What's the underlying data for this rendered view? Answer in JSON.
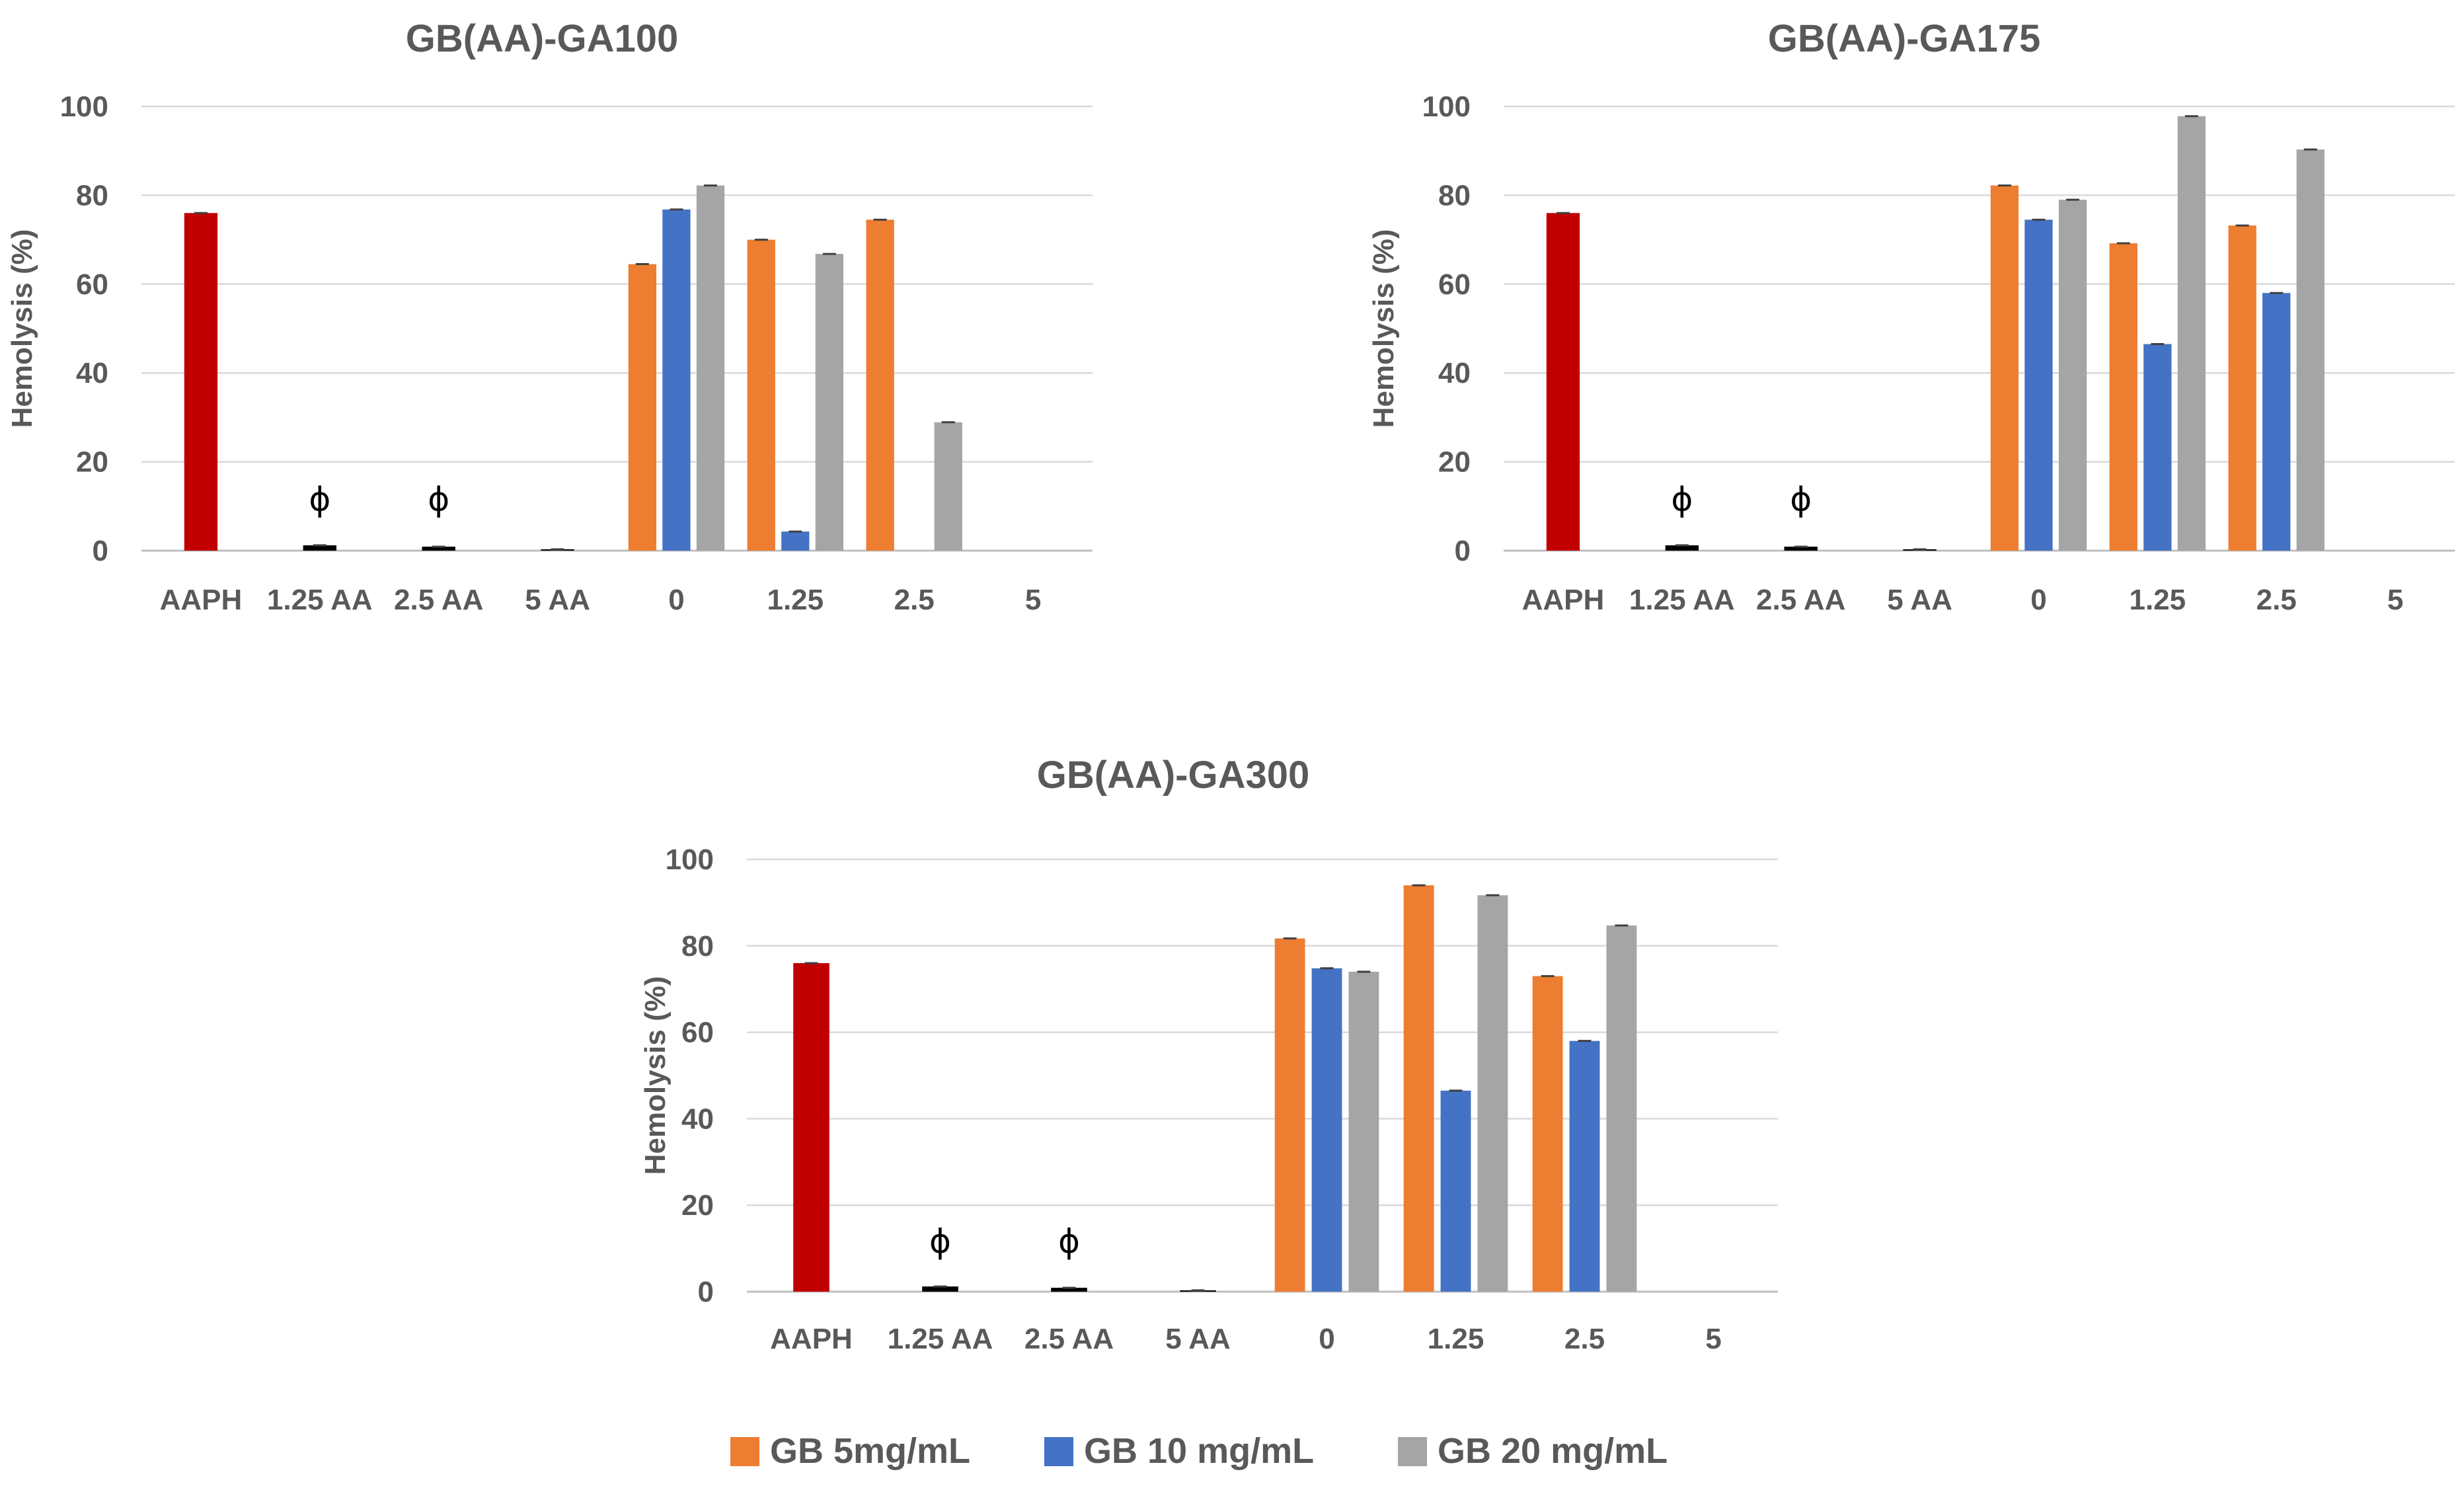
{
  "chart_data": [
    {
      "type": "bar",
      "title": "GB(AA)-GA100",
      "xlabel": "",
      "ylabel": "Hemolysis (%)",
      "ylim": [
        0,
        100
      ],
      "yticks": [
        0,
        20,
        40,
        60,
        80,
        100
      ],
      "grid": true,
      "categories": [
        "AAPH",
        "1.25 AA",
        "2.5 AA",
        "5 AA",
        "0",
        "1.25",
        "2.5",
        "5"
      ],
      "controls": [
        {
          "category": "AAPH",
          "value": 76.0,
          "color": "#C00000"
        },
        {
          "category": "1.25 AA",
          "value": 1.2,
          "color": "#000000",
          "annotation": "ϕ"
        },
        {
          "category": "2.5 AA",
          "value": 0.9,
          "color": "#000000",
          "annotation": "ϕ"
        },
        {
          "category": "5 AA",
          "value": 0.2,
          "color": "#000000"
        }
      ],
      "series": [
        {
          "name": "GB 5mg/mL",
          "color": "#ED7D31",
          "values": [
            null,
            null,
            null,
            null,
            64.5,
            70.0,
            74.5,
            null
          ]
        },
        {
          "name": "GB 10 mg/mL",
          "color": "#4472C4",
          "values": [
            null,
            null,
            null,
            null,
            76.8,
            4.3,
            null,
            null
          ]
        },
        {
          "name": "GB 20 mg/mL",
          "color": "#A5A5A5",
          "values": [
            null,
            null,
            null,
            null,
            82.2,
            66.8,
            28.9,
            null
          ]
        }
      ]
    },
    {
      "type": "bar",
      "title": "GB(AA)-GA175",
      "xlabel": "",
      "ylabel": "Hemolysis (%)",
      "ylim": [
        0,
        100
      ],
      "yticks": [
        0,
        20,
        40,
        60,
        80,
        100
      ],
      "grid": true,
      "categories": [
        "AAPH",
        "1.25 AA",
        "2.5 AA",
        "5 AA",
        "0",
        "1.25",
        "2.5",
        "5"
      ],
      "controls": [
        {
          "category": "AAPH",
          "value": 76.0,
          "color": "#C00000"
        },
        {
          "category": "1.25 AA",
          "value": 1.2,
          "color": "#000000",
          "annotation": "ϕ"
        },
        {
          "category": "2.5 AA",
          "value": 0.9,
          "color": "#000000",
          "annotation": "ϕ"
        },
        {
          "category": "5 AA",
          "value": 0.2,
          "color": "#000000"
        }
      ],
      "series": [
        {
          "name": "GB 5mg/mL",
          "color": "#ED7D31",
          "values": [
            null,
            null,
            null,
            null,
            82.2,
            69.2,
            73.2,
            null
          ]
        },
        {
          "name": "GB 10 mg/mL",
          "color": "#4472C4",
          "values": [
            null,
            null,
            null,
            null,
            74.5,
            46.5,
            58.0,
            null
          ]
        },
        {
          "name": "GB 20 mg/mL",
          "color": "#A5A5A5",
          "values": [
            null,
            null,
            null,
            null,
            79.0,
            97.8,
            90.3,
            null
          ]
        }
      ]
    },
    {
      "type": "bar",
      "title": "GB(AA)-GA300",
      "xlabel": "",
      "ylabel": "Hemolysis (%)",
      "ylim": [
        0,
        100
      ],
      "yticks": [
        0,
        20,
        40,
        60,
        80,
        100
      ],
      "grid": true,
      "categories": [
        "AAPH",
        "1.25 AA",
        "2.5 AA",
        "5 AA",
        "0",
        "1.25",
        "2.5",
        "5"
      ],
      "controls": [
        {
          "category": "AAPH",
          "value": 76.0,
          "color": "#C00000"
        },
        {
          "category": "1.25 AA",
          "value": 1.2,
          "color": "#000000",
          "annotation": "ϕ"
        },
        {
          "category": "2.5 AA",
          "value": 0.9,
          "color": "#000000",
          "annotation": "ϕ"
        },
        {
          "category": "5 AA",
          "value": 0.2,
          "color": "#000000"
        }
      ],
      "series": [
        {
          "name": "GB 5mg/mL",
          "color": "#ED7D31",
          "values": [
            null,
            null,
            null,
            null,
            81.7,
            94.0,
            73.0,
            null
          ]
        },
        {
          "name": "GB 10 mg/mL",
          "color": "#4472C4",
          "values": [
            null,
            null,
            null,
            null,
            74.8,
            46.5,
            58.0,
            null
          ]
        },
        {
          "name": "GB 20 mg/mL",
          "color": "#A5A5A5",
          "values": [
            null,
            null,
            null,
            null,
            74.0,
            91.7,
            84.7,
            null
          ]
        }
      ]
    }
  ],
  "legend": {
    "placement": "bottom-center",
    "entries": [
      {
        "label": "GB 5mg/mL",
        "color": "#ED7D31"
      },
      {
        "label": "GB 10 mg/mL",
        "color": "#4472C4"
      },
      {
        "label": "GB 20 mg/mL",
        "color": "#A5A5A5"
      }
    ]
  }
}
